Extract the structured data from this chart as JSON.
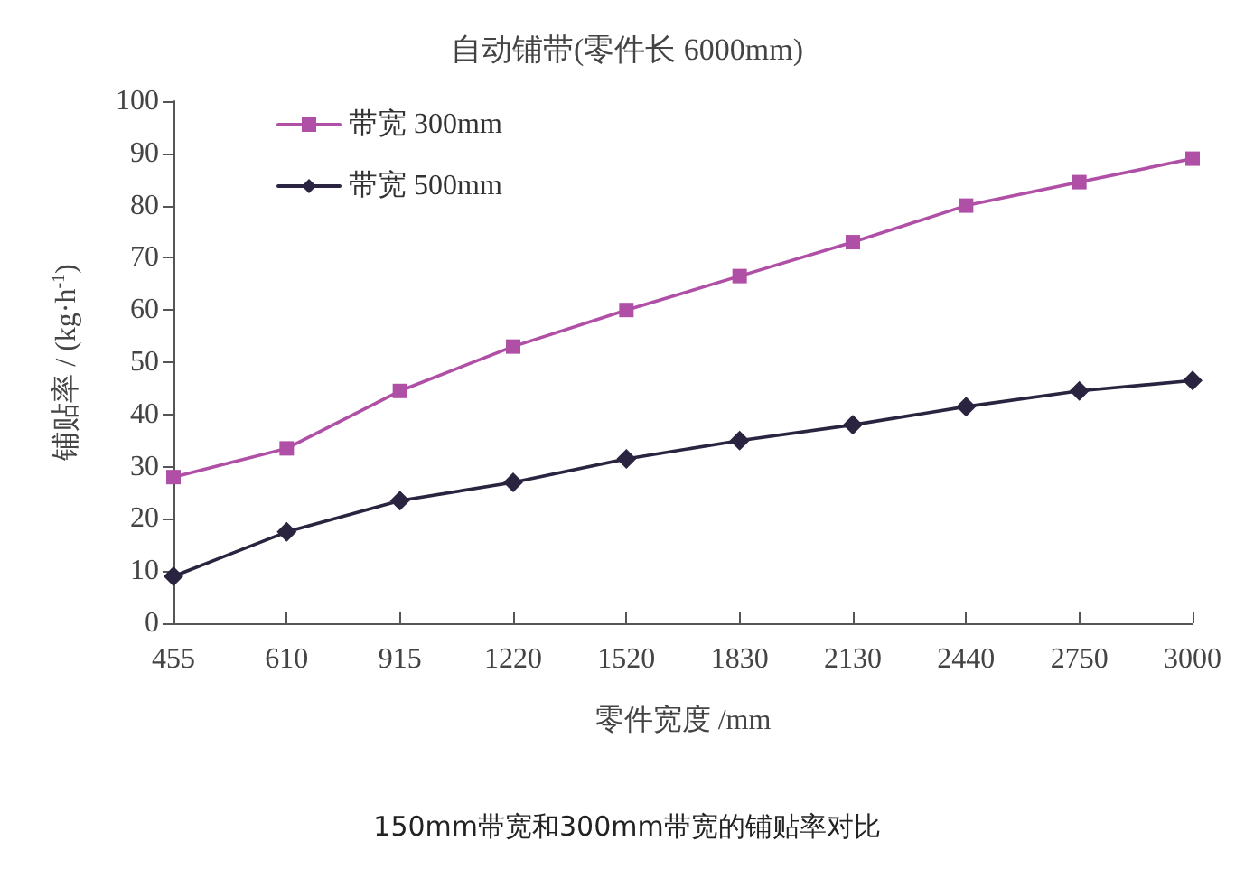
{
  "chart_data": {
    "type": "line",
    "title": "自动铺带(零件长 6000mm)",
    "xlabel": "零件宽度 /mm",
    "ylabel": "铺贴率 / (kg·h$^{-1}$)",
    "categories": [
      "455",
      "610",
      "915",
      "1220",
      "1520",
      "1830",
      "2130",
      "2440",
      "2750",
      "3000"
    ],
    "series": [
      {
        "name": "带宽 300mm",
        "color": "#b04fa6",
        "marker": "square",
        "values": [
          28,
          33.5,
          44.5,
          53,
          60,
          66.5,
          73,
          80,
          84.5,
          89
        ]
      },
      {
        "name": "带宽 500mm",
        "color": "#2a2440",
        "marker": "diamond",
        "values": [
          9,
          17.5,
          23.5,
          27,
          31.5,
          35,
          38,
          41.5,
          44.5,
          46.5
        ]
      }
    ],
    "ylim": [
      0,
      100
    ],
    "yticks": [
      0,
      10,
      20,
      30,
      40,
      50,
      60,
      70,
      80,
      90,
      100
    ],
    "grid": false,
    "legend": "top left",
    "annotations": [
      "150mm带宽和300mm带宽的铺贴率对比"
    ]
  }
}
